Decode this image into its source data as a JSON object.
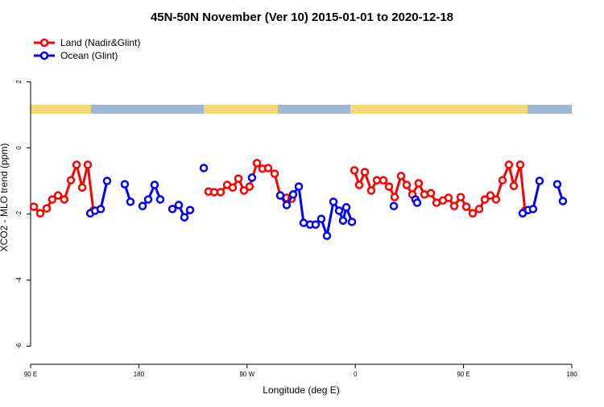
{
  "chart_data": {
    "type": "line",
    "title": "45N-50N November (Ver 10)   2015-01-01 to 2020-12-18",
    "x_label": "Longitude (deg E)",
    "y_label": "XCO2 - MLO trend (ppm)",
    "xlim": [
      90,
      540
    ],
    "ylim": [
      -6.55,
      3.55
    ],
    "xticks": [
      {
        "value": 90,
        "label": "90 E"
      },
      {
        "value": 180,
        "label": "180"
      },
      {
        "value": 270,
        "label": "90 W"
      },
      {
        "value": 360,
        "label": "0"
      },
      {
        "value": 450,
        "label": "90 E"
      },
      {
        "value": 540,
        "label": "180"
      }
    ],
    "yticks": [
      2,
      0,
      -2,
      -4,
      -6
    ],
    "legend": "top-left",
    "series": [
      {
        "name": "Land (Nadir&Glint)",
        "color": "#ff0000",
        "x": [
          92.7,
          98,
          103.4,
          108,
          112.8,
          118,
          123.5,
          128.2,
          132.9,
          137.5,
          142.2,
          null,
          238,
          242.7,
          248,
          253.4,
          258.1,
          262.8,
          267.4,
          272.1,
          278.2,
          282.8,
          287.5,
          292.9,
          297.6,
          302.9,
          307,
          null,
          359.2,
          363.2,
          367.9,
          373.2,
          377.9,
          383.3,
          388,
          392.7,
          398,
          402.7,
          407.4,
          412.7,
          417.4,
          422.8,
          427.5,
          432.8,
          437.5,
          442.2,
          447.6,
          452.3,
          457.6,
          463,
          467.7,
          472.3,
          477,
          482.4,
          487.7,
          491.8,
          497.1,
          501.1
        ],
        "values": [
          -1.78,
          -1.98,
          -1.83,
          -1.56,
          -1.44,
          -1.56,
          -0.98,
          -0.51,
          -1.2,
          -0.51,
          -1.9,
          null,
          -1.32,
          -1.34,
          -1.34,
          -1.12,
          -1.2,
          -0.93,
          -1.29,
          -1.17,
          -0.46,
          -0.63,
          -0.61,
          -0.78,
          -1.44,
          -1.51,
          -1.54,
          null,
          -0.68,
          -1.12,
          -0.73,
          -1.29,
          -0.98,
          -0.98,
          -1.17,
          -1.49,
          -0.85,
          -1.12,
          -1.41,
          -1.07,
          -1.41,
          -1.37,
          -1.66,
          -1.59,
          -1.51,
          -1.76,
          -1.49,
          -1.78,
          -1.98,
          -1.85,
          -1.56,
          -1.44,
          -1.56,
          -0.98,
          -0.51,
          -1.15,
          -0.51,
          -1.9
        ]
      },
      {
        "name": "Ocean (Glint)",
        "color": "#0000ff",
        "x": [
          139.6,
          143.6,
          148.3,
          153.6,
          null,
          168.3,
          173,
          null,
          183.1,
          187.8,
          193.1,
          197.8,
          null,
          207.9,
          213.2,
          217.9,
          222.6,
          null,
          234,
          null,
          274.1,
          null,
          297.6,
          302.9,
          308.3,
          313,
          317,
          322.4,
          327,
          331.7,
          336.4,
          341.8,
          346.5,
          349.8,
          352.5,
          357.2,
          null,
          392,
          null,
          410,
          411.4,
          null,
          499.1,
          503.8,
          507.8,
          513.2,
          null,
          527.9,
          532.6
        ],
        "values": [
          -1.98,
          -1.9,
          -1.85,
          -1,
          null,
          -1.1,
          -1.63,
          null,
          -1.76,
          -1.56,
          -1.12,
          -1.56,
          null,
          -1.85,
          -1.73,
          -2.1,
          -1.88,
          null,
          -0.61,
          null,
          -0.9,
          null,
          -1.44,
          -1.73,
          -1.41,
          -1.17,
          -2.27,
          -2.32,
          -2.32,
          -2.15,
          -2.66,
          -1.63,
          -1.9,
          -2.2,
          -1.8,
          -2.24,
          null,
          -1.76,
          null,
          -1.56,
          -1.66,
          null,
          -1.98,
          -1.88,
          -1.85,
          -1,
          null,
          -1.1,
          -1.61
        ]
      }
    ]
  }
}
